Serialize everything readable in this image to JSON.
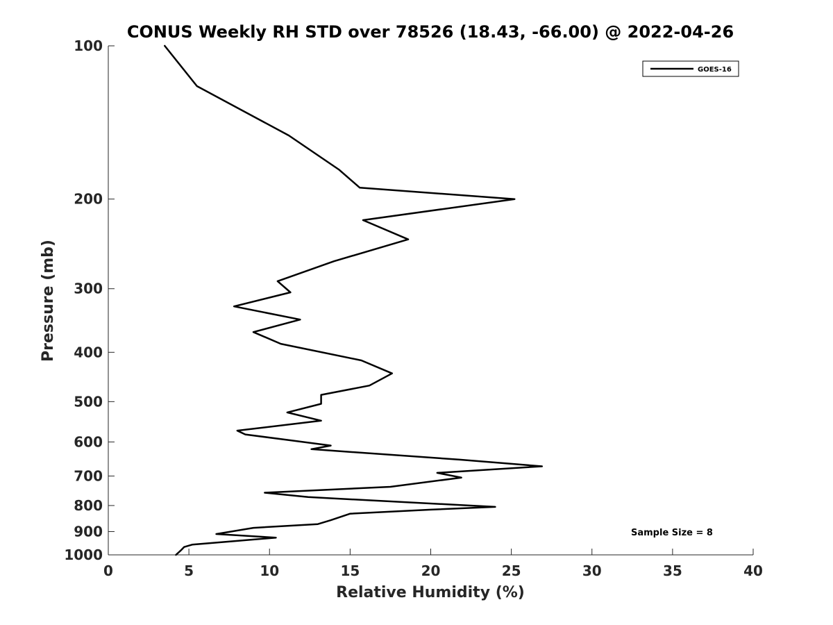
{
  "chart_data": {
    "type": "line",
    "title": "CONUS Weekly RH STD over 78526 (18.43, -66.00) @ 2022-04-26",
    "xlabel": "Relative Humidity (%)",
    "ylabel": "Pressure (mb)",
    "xlim": [
      0,
      40
    ],
    "ylim": [
      1000,
      100
    ],
    "y_scale": "log",
    "x_ticks": [
      0,
      5,
      10,
      15,
      20,
      25,
      30,
      35,
      40
    ],
    "x_tick_labels": [
      "0",
      "5",
      "10",
      "15",
      "20",
      "25",
      "30",
      "35",
      "40"
    ],
    "y_ticks": [
      100,
      200,
      300,
      400,
      500,
      600,
      700,
      800,
      900,
      1000
    ],
    "y_tick_labels": [
      "100",
      "200",
      "300",
      "400",
      "500",
      "600",
      "700",
      "800",
      "900",
      "1000"
    ],
    "grid": false,
    "legend_position": "top-right",
    "annotation": "Sample Size = 8",
    "series": [
      {
        "name": "GOES-16",
        "color": "#000000",
        "x": [
          3.5,
          5.5,
          11.2,
          14.3,
          15.6,
          25.2,
          15.8,
          18.6,
          14.0,
          10.5,
          11.3,
          7.8,
          11.9,
          9.0,
          10.7,
          15.7,
          17.6,
          16.2,
          13.2,
          13.2,
          11.1,
          13.2,
          8.0,
          8.5,
          13.8,
          12.6,
          21.8,
          26.9,
          20.4,
          21.9,
          17.5,
          9.7,
          12.4,
          24.0,
          20.0,
          15.0,
          13.8,
          13.0,
          9.0,
          6.7,
          10.4,
          7.8,
          5.2,
          4.7,
          4.5,
          4.2
        ],
        "y": [
          100,
          120,
          150,
          175,
          190,
          200,
          220,
          240,
          265,
          290,
          305,
          325,
          345,
          365,
          385,
          415,
          440,
          465,
          485,
          505,
          525,
          545,
          570,
          580,
          610,
          620,
          650,
          670,
          690,
          705,
          735,
          755,
          770,
          805,
          815,
          830,
          855,
          870,
          885,
          910,
          925,
          940,
          955,
          965,
          980,
          1000
        ]
      }
    ]
  }
}
